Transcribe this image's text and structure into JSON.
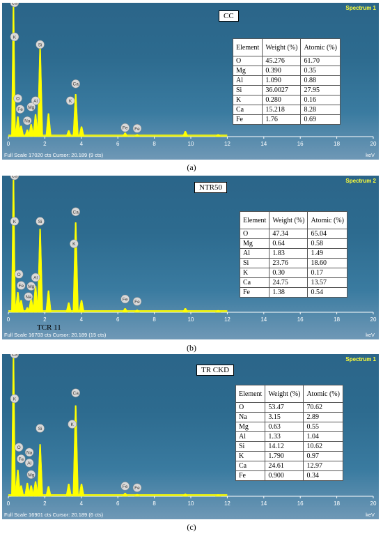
{
  "panels": [
    {
      "sample": "CC",
      "spectrum_label": "Spectrum 1",
      "footer": "Full Scale 17020 cts Cursor: 20.189  (9 cts)",
      "caption": "(a)",
      "table": {
        "headers": [
          "Element",
          "Weight (%)",
          "Atomic (%)"
        ],
        "rows": [
          [
            "O",
            "45.276",
            "61.70"
          ],
          [
            "Mg",
            "0.390",
            "0.35"
          ],
          [
            "Al",
            "1.090",
            "0.88"
          ],
          [
            "Si",
            "36.0027",
            "27.95"
          ],
          [
            "K",
            "0.280",
            "0.16"
          ],
          [
            "Ca",
            "15.218",
            "8.28"
          ],
          [
            "Fe",
            "1.76",
            "0.69"
          ]
        ]
      }
    },
    {
      "sample": "NTR50",
      "spectrum_label": "Spectrum 2",
      "footer": "Full Scale 16703 cts Cursor: 20.189  (15 cts)",
      "overlay_text": "TCR 11",
      "caption": "(b)",
      "table": {
        "headers": [
          "Element",
          "Weight (%)",
          "Atomic (%)"
        ],
        "rows": [
          [
            "O",
            "47.34",
            "65.04"
          ],
          [
            "Mg",
            "0.64",
            "0.58"
          ],
          [
            "Al",
            "1.83",
            "1.49"
          ],
          [
            "Si",
            "23.76",
            "18.60"
          ],
          [
            "K",
            "0.30",
            "0.17"
          ],
          [
            "Ca",
            "24.75",
            "13.57"
          ],
          [
            "Fe",
            "1.38",
            "0.54"
          ]
        ]
      }
    },
    {
      "sample": "TR CKD",
      "spectrum_label": "Spectrum 1",
      "footer": "Full Scale 16901 cts Cursor: 20.189  (6 cts)",
      "caption": "(c)",
      "table": {
        "headers": [
          "Element",
          "Weight (%)",
          "Atomic (%)"
        ],
        "rows": [
          [
            "O",
            "53.47",
            "70.62"
          ],
          [
            "Na",
            "3.15",
            "2.89"
          ],
          [
            "Mg",
            "0.63",
            "0.55"
          ],
          [
            "Al",
            "1.33",
            "1.04"
          ],
          [
            "Si",
            "14.12",
            "10.62"
          ],
          [
            "K",
            "1.790",
            "0.97"
          ],
          [
            "Ca",
            "24.61",
            "12.97"
          ],
          [
            "Fe",
            "0.900",
            "0.34"
          ]
        ]
      }
    }
  ],
  "chart_data": [
    {
      "type": "line",
      "xlabel": "keV",
      "xlim": [
        0,
        20
      ],
      "x_ticks": [
        "0",
        "2",
        "4",
        "6",
        "8",
        "10",
        "12",
        "14",
        "16",
        "18",
        "20"
      ],
      "ylim": [
        0,
        17020
      ],
      "line_color": "#ffff00",
      "peaks": [
        {
          "x": 0.28,
          "y": 17020
        },
        {
          "x": 0.52,
          "y": 2600
        },
        {
          "x": 0.7,
          "y": 1400
        },
        {
          "x": 1.04,
          "y": 900
        },
        {
          "x": 1.25,
          "y": 1600
        },
        {
          "x": 1.49,
          "y": 2900
        },
        {
          "x": 1.74,
          "y": 11600
        },
        {
          "x": 2.2,
          "y": 3000
        },
        {
          "x": 3.31,
          "y": 800
        },
        {
          "x": 3.69,
          "y": 5500
        },
        {
          "x": 4.01,
          "y": 1300
        },
        {
          "x": 6.4,
          "y": 500
        },
        {
          "x": 7.06,
          "y": 300
        },
        {
          "x": 9.7,
          "y": 700
        },
        {
          "x": 11.5,
          "y": 300
        }
      ],
      "peak_labels": [
        {
          "text": "Ca",
          "x": 0.34,
          "y": 17020
        },
        {
          "text": "K",
          "x": 0.34,
          "y": 12600
        },
        {
          "text": "Si",
          "x": 1.74,
          "y": 11600
        },
        {
          "text": "O",
          "x": 0.52,
          "y": 4600
        },
        {
          "text": "Fe",
          "x": 0.65,
          "y": 3200
        },
        {
          "text": "Al",
          "x": 1.49,
          "y": 4300
        },
        {
          "text": "Mg",
          "x": 1.25,
          "y": 3500
        },
        {
          "text": "Na",
          "x": 1.04,
          "y": 1700
        },
        {
          "text": "Ca",
          "x": 3.69,
          "y": 6500
        },
        {
          "text": "K",
          "x": 3.4,
          "y": 4300
        },
        {
          "text": "Fe",
          "x": 6.4,
          "y": 800
        },
        {
          "text": "Fe",
          "x": 7.06,
          "y": 700
        }
      ]
    },
    {
      "type": "line",
      "xlabel": "keV",
      "xlim": [
        0,
        20
      ],
      "x_ticks": [
        "0",
        "2",
        "4",
        "6",
        "8",
        "10",
        "12",
        "14",
        "16",
        "18",
        "20"
      ],
      "ylim": [
        0,
        16703
      ],
      "line_color": "#ffff00",
      "peaks": [
        {
          "x": 0.28,
          "y": 16703
        },
        {
          "x": 0.52,
          "y": 2500
        },
        {
          "x": 0.7,
          "y": 1500
        },
        {
          "x": 1.04,
          "y": 600
        },
        {
          "x": 1.25,
          "y": 1800
        },
        {
          "x": 1.49,
          "y": 3300
        },
        {
          "x": 1.74,
          "y": 10400
        },
        {
          "x": 2.2,
          "y": 2700
        },
        {
          "x": 3.31,
          "y": 1200
        },
        {
          "x": 3.69,
          "y": 11200
        },
        {
          "x": 4.01,
          "y": 1500
        },
        {
          "x": 6.4,
          "y": 500
        },
        {
          "x": 7.06,
          "y": 300
        },
        {
          "x": 9.7,
          "y": 500
        },
        {
          "x": 11.5,
          "y": 250
        }
      ],
      "peak_labels": [
        {
          "text": "Ca",
          "x": 0.34,
          "y": 16703
        },
        {
          "text": "K",
          "x": 0.34,
          "y": 11000
        },
        {
          "text": "Si",
          "x": 1.74,
          "y": 11000
        },
        {
          "text": "O",
          "x": 0.58,
          "y": 4400
        },
        {
          "text": "Fe",
          "x": 0.7,
          "y": 3000
        },
        {
          "text": "Al",
          "x": 1.49,
          "y": 4000
        },
        {
          "text": "Mg",
          "x": 1.25,
          "y": 2900
        },
        {
          "text": "Na",
          "x": 1.1,
          "y": 1600
        },
        {
          "text": "Ca",
          "x": 3.69,
          "y": 12200
        },
        {
          "text": "K",
          "x": 3.6,
          "y": 8200
        },
        {
          "text": "Fe",
          "x": 6.4,
          "y": 1300
        },
        {
          "text": "Fe",
          "x": 7.06,
          "y": 1000
        }
      ]
    },
    {
      "type": "line",
      "xlabel": "keV",
      "xlim": [
        0,
        20
      ],
      "x_ticks": [
        "0",
        "2",
        "4",
        "6",
        "8",
        "10",
        "12",
        "14",
        "16",
        "18",
        "20"
      ],
      "ylim": [
        0,
        16901
      ],
      "line_color": "#ffff00",
      "peaks": [
        {
          "x": 0.28,
          "y": 16901
        },
        {
          "x": 0.52,
          "y": 3200
        },
        {
          "x": 0.7,
          "y": 1300
        },
        {
          "x": 1.04,
          "y": 1600
        },
        {
          "x": 1.25,
          "y": 1300
        },
        {
          "x": 1.49,
          "y": 1800
        },
        {
          "x": 1.74,
          "y": 6300
        },
        {
          "x": 2.2,
          "y": 1200
        },
        {
          "x": 3.31,
          "y": 1500
        },
        {
          "x": 3.69,
          "y": 11000
        },
        {
          "x": 4.01,
          "y": 1500
        },
        {
          "x": 6.4,
          "y": 400
        },
        {
          "x": 7.06,
          "y": 250
        },
        {
          "x": 9.7,
          "y": 300
        },
        {
          "x": 11.5,
          "y": 200
        }
      ],
      "peak_labels": [
        {
          "text": "Ca",
          "x": 0.34,
          "y": 16901
        },
        {
          "text": "K",
          "x": 0.34,
          "y": 11500
        },
        {
          "text": "Si",
          "x": 1.74,
          "y": 7900
        },
        {
          "text": "O",
          "x": 0.58,
          "y": 5600
        },
        {
          "text": "Fe",
          "x": 0.7,
          "y": 4200
        },
        {
          "text": "Na",
          "x": 1.15,
          "y": 5000
        },
        {
          "text": "Al",
          "x": 1.15,
          "y": 3700
        },
        {
          "text": "Mg",
          "x": 1.25,
          "y": 2300
        },
        {
          "text": "Ca",
          "x": 3.69,
          "y": 12200
        },
        {
          "text": "K",
          "x": 3.5,
          "y": 8400
        },
        {
          "text": "Fe",
          "x": 6.4,
          "y": 900
        },
        {
          "text": "Fe",
          "x": 7.06,
          "y": 700
        }
      ]
    }
  ]
}
